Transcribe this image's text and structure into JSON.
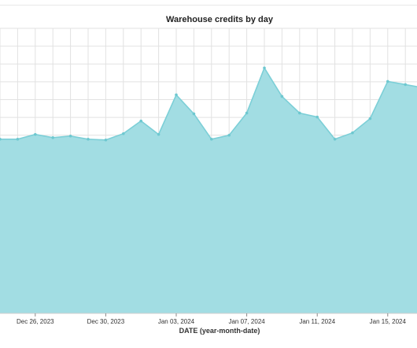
{
  "chart_data": {
    "type": "area",
    "title": "Warehouse credits by day",
    "xlabel": "DATE (year-month-date)",
    "ylabel": "",
    "x": [
      "2023-12-24",
      "2023-12-25",
      "2023-12-26",
      "2023-12-27",
      "2023-12-28",
      "2023-12-29",
      "2023-12-30",
      "2023-12-31",
      "2024-01-01",
      "2024-01-02",
      "2024-01-03",
      "2024-01-04",
      "2024-01-05",
      "2024-01-06",
      "2024-01-07",
      "2024-01-08",
      "2024-01-09",
      "2024-01-10",
      "2024-01-11",
      "2024-01-12",
      "2024-01-13",
      "2024-01-14",
      "2024-01-15",
      "2024-01-16",
      "2024-01-17"
    ],
    "values": [
      22.0,
      22.0,
      22.6,
      22.2,
      22.4,
      22.0,
      21.9,
      22.7,
      24.3,
      22.6,
      27.6,
      25.2,
      22.0,
      22.5,
      25.3,
      31.0,
      27.4,
      25.3,
      24.8,
      22.0,
      22.8,
      24.6,
      29.3,
      28.9,
      28.5
    ],
    "x_ticks": [
      "Dec 26, 2023",
      "Dec 30, 2023",
      "Jan 03, 2024",
      "Jan 07, 2024",
      "Jan 11, 2024",
      "Jan 15, 2024"
    ],
    "x_tick_dates": [
      "2023-12-26",
      "2023-12-30",
      "2024-01-03",
      "2024-01-07",
      "2024-01-11",
      "2024-01-15"
    ],
    "ylim": [
      0,
      36
    ],
    "grid": true,
    "legend": "none",
    "colors": {
      "fill": "#a2dde3",
      "line": "#7ccfd7",
      "point": "#6ec8d0",
      "grid": "#e2e2e2"
    }
  }
}
